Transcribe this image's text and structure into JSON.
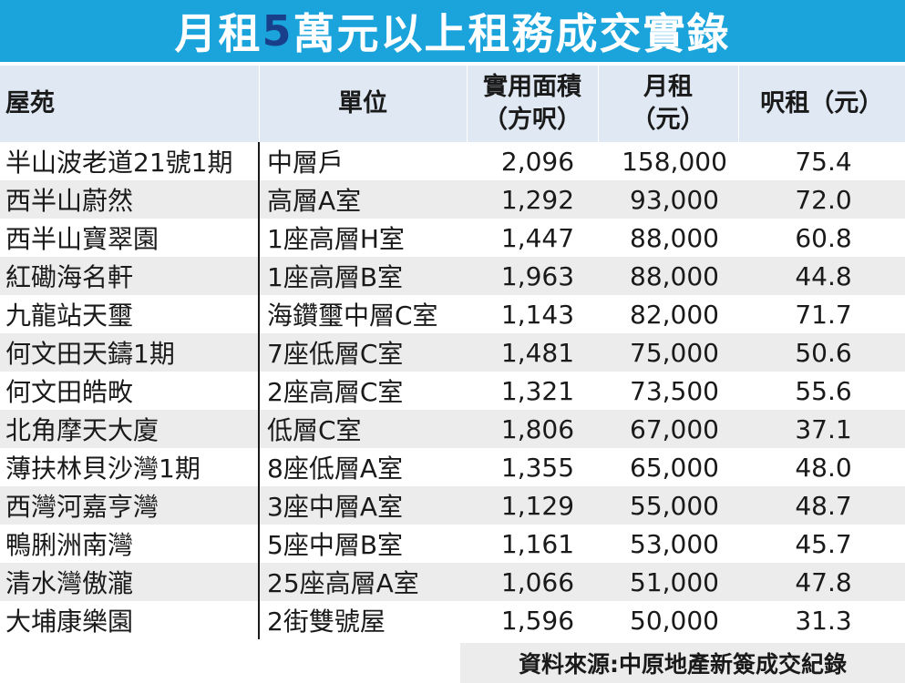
{
  "title": {
    "prefix": "月租",
    "number": "5",
    "suffix": "萬元以上租務成交實錄"
  },
  "colors": {
    "header_band": "#1ba3dc",
    "title_number": "#1a3f8a",
    "column_header_bg": "#dfe8f3",
    "row_stripe": "#ececec"
  },
  "table": {
    "headers": {
      "estate": "屋苑",
      "unit": "單位",
      "area": [
        "實用面積",
        "（方呎）"
      ],
      "rent": [
        "月租",
        "（元）"
      ],
      "psf": "呎租（元）"
    },
    "rows": [
      {
        "estate": "半山波老道21號1期",
        "unit": "中層戶",
        "area": "2,096",
        "rent": "158,000",
        "psf": "75.4"
      },
      {
        "estate": "西半山蔚然",
        "unit": "高層A室",
        "area": "1,292",
        "rent": "93,000",
        "psf": "72.0"
      },
      {
        "estate": "西半山寶翠園",
        "unit": "1座高層H室",
        "area": "1,447",
        "rent": "88,000",
        "psf": "60.8"
      },
      {
        "estate": "紅磡海名軒",
        "unit": "1座高層B室",
        "area": "1,963",
        "rent": "88,000",
        "psf": "44.8"
      },
      {
        "estate": "九龍站天璽",
        "unit": "海鑽璽中層C室",
        "area": "1,143",
        "rent": "82,000",
        "psf": "71.7"
      },
      {
        "estate": "何文田天鑄1期",
        "unit": "7座低層C室",
        "area": "1,481",
        "rent": "75,000",
        "psf": "50.6"
      },
      {
        "estate": "何文田皓畋",
        "unit": "2座高層C室",
        "area": "1,321",
        "rent": "73,500",
        "psf": "55.6"
      },
      {
        "estate": "北角摩天大廈",
        "unit": "低層C室",
        "area": "1,806",
        "rent": "67,000",
        "psf": "37.1"
      },
      {
        "estate": "薄扶林貝沙灣1期",
        "unit": "8座低層A室",
        "area": "1,355",
        "rent": "65,000",
        "psf": "48.0"
      },
      {
        "estate": "西灣河嘉亨灣",
        "unit": "3座中層A室",
        "area": "1,129",
        "rent": "55,000",
        "psf": "48.7"
      },
      {
        "estate": "鴨脷洲南灣",
        "unit": "5座中層B室",
        "area": "1,161",
        "rent": "53,000",
        "psf": "45.7"
      },
      {
        "estate": "清水灣傲瀧",
        "unit": "25座高層A室",
        "area": "1,066",
        "rent": "51,000",
        "psf": "47.8"
      },
      {
        "estate": "大埔康樂園",
        "unit": "2街雙號屋",
        "area": "1,596",
        "rent": "50,000",
        "psf": "31.3"
      }
    ]
  },
  "source": "資料來源:中原地產新簽成交紀錄"
}
